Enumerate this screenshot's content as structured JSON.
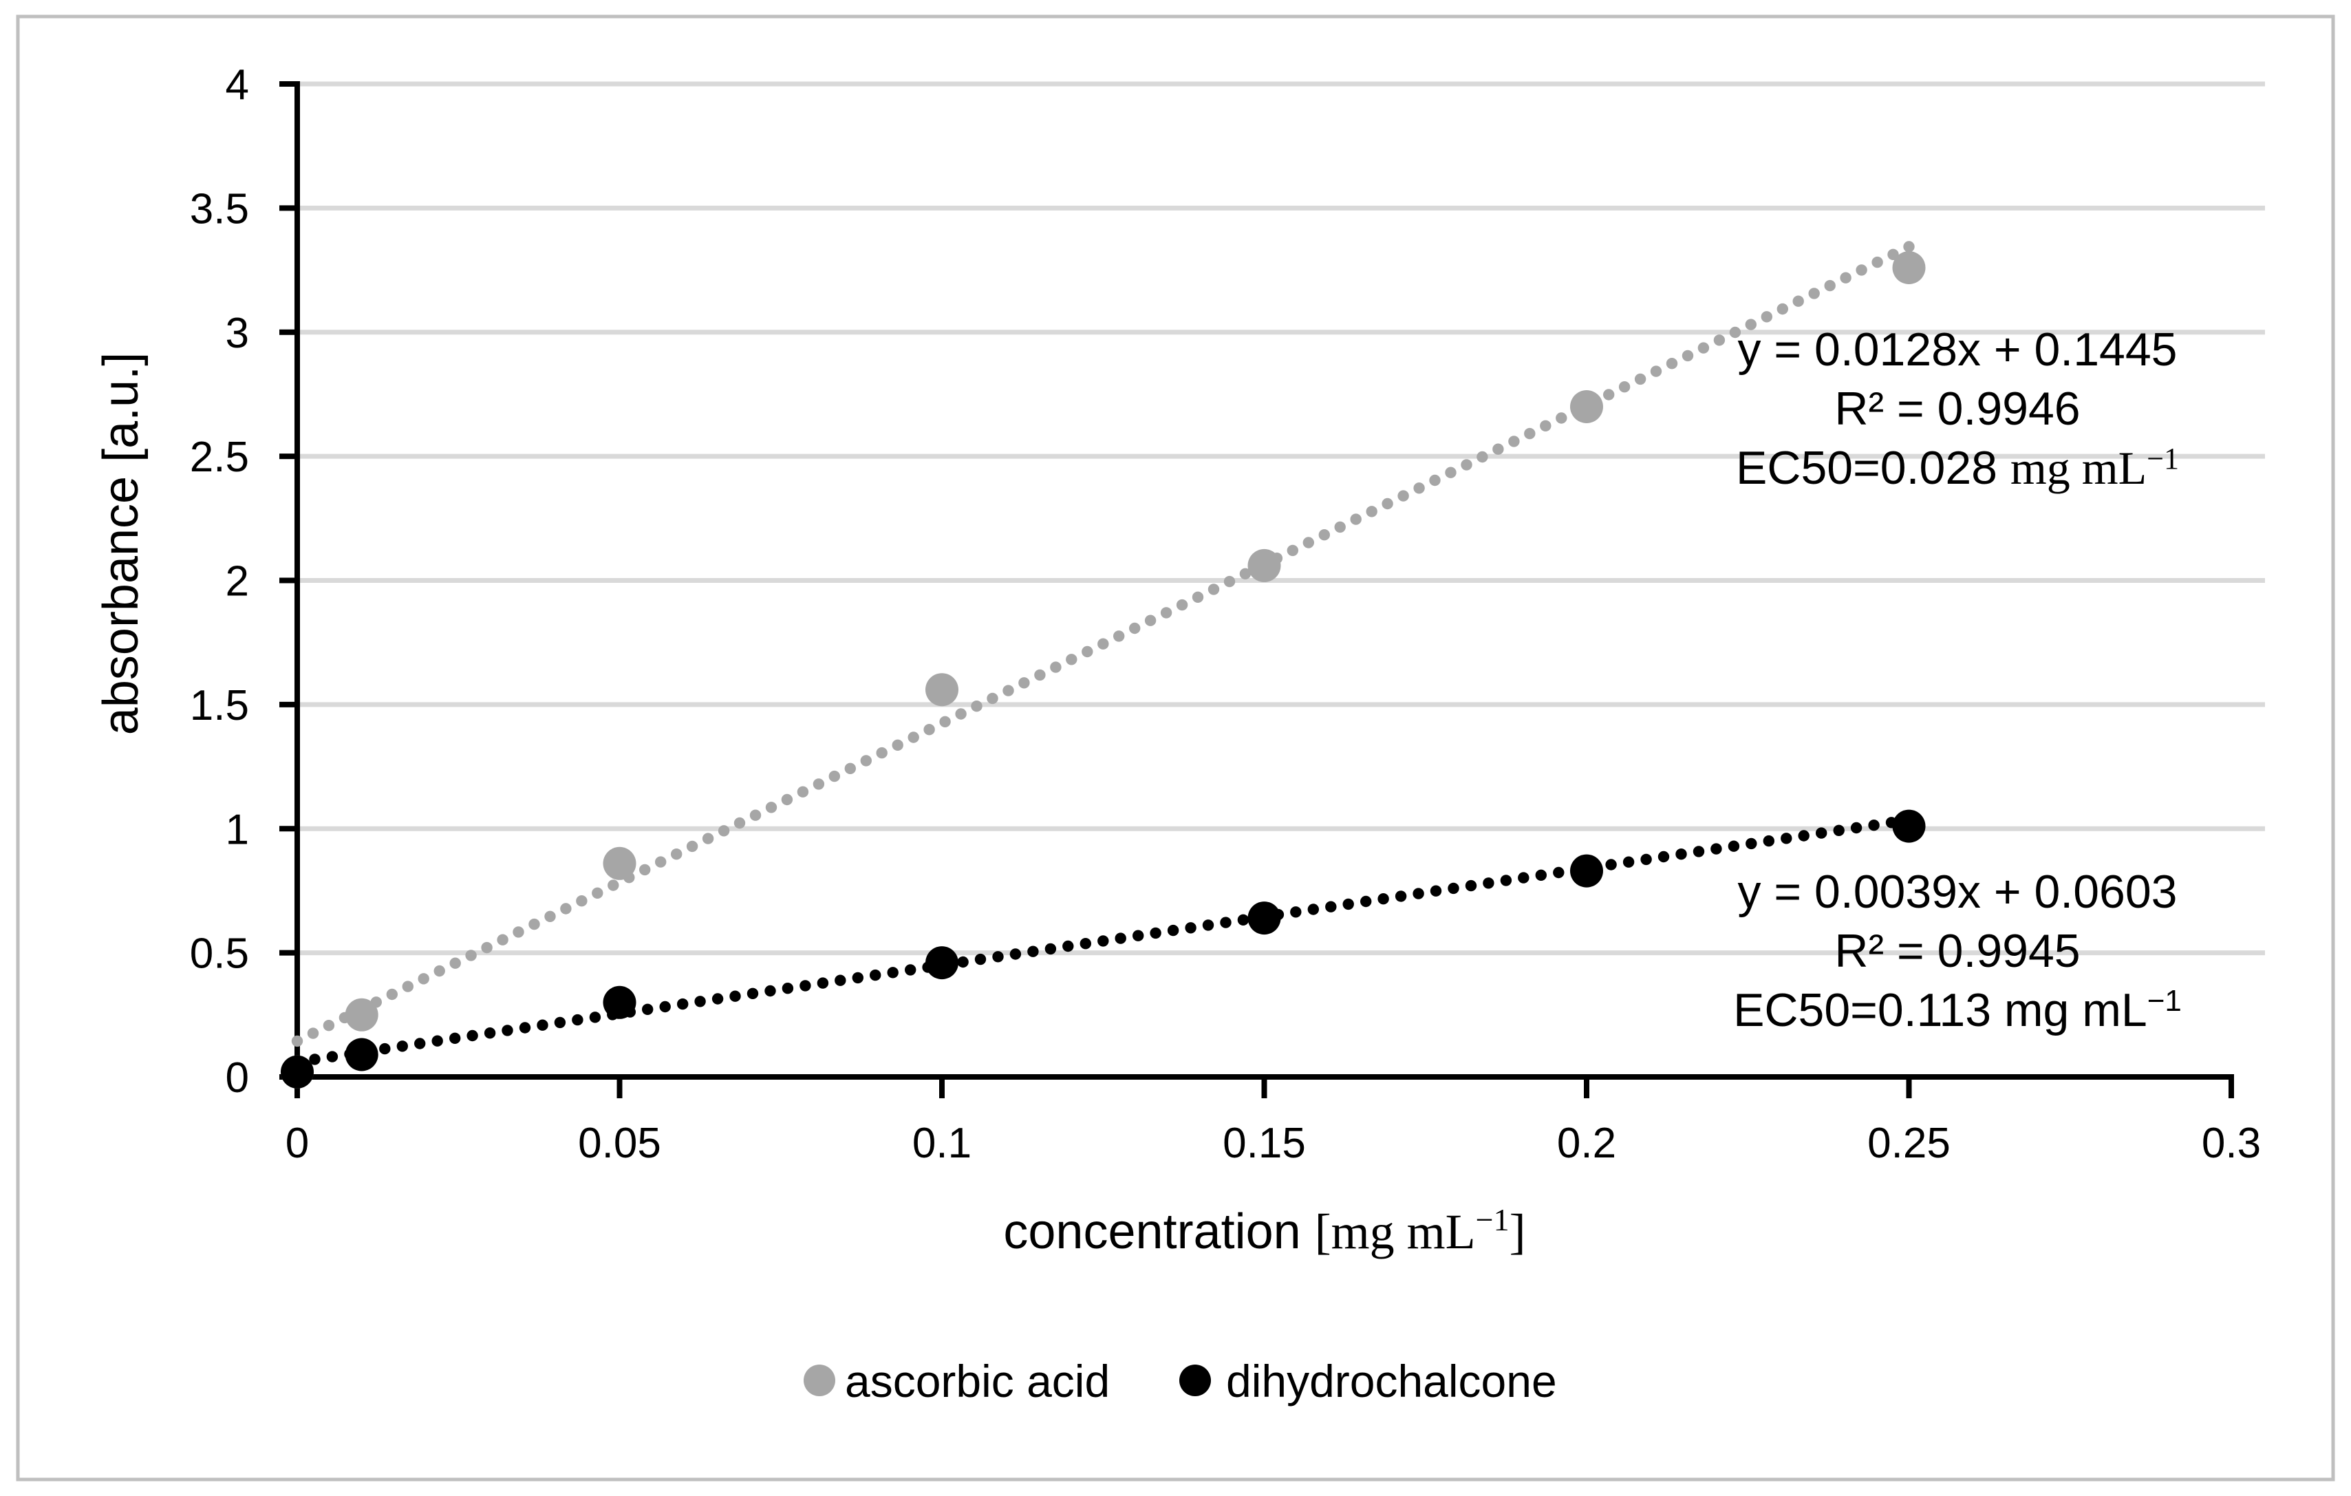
{
  "chart": {
    "background": "#ffffff",
    "border_color": "#bfbfbf"
  },
  "chart_data": {
    "type": "scatter",
    "title": "",
    "xlabel_parts": {
      "main": "concentration ",
      "unit": "[mg mL",
      "sup": "−1",
      "close": "]"
    },
    "ylabel": "absorbance [a.u.]",
    "xlim": [
      0,
      0.3
    ],
    "ylim": [
      0,
      4
    ],
    "x_tick_values": [
      0,
      0.05,
      0.1,
      0.15,
      0.2,
      0.25,
      0.3
    ],
    "x_tick_labels": [
      "0",
      "0.05",
      "0.1",
      "0.15",
      "0.2",
      "0.25",
      "0.3"
    ],
    "y_tick_values": [
      0,
      0.5,
      1,
      1.5,
      2,
      2.5,
      3,
      3.5,
      4
    ],
    "y_tick_labels": [
      "0",
      "0.5",
      "1",
      "1.5",
      "2",
      "2.5",
      "3",
      "3.5",
      "4"
    ],
    "grid": "horizontal-only",
    "legend_position": "bottom-center",
    "colors": {
      "gridline": "#d9d9d9",
      "axis": "#000000",
      "ascorbic": "#a6a6a6",
      "dihydro": "#000000"
    },
    "series": [
      {
        "name": "ascorbic acid",
        "color": "#a6a6a6",
        "x": [
          0,
          0.01,
          0.05,
          0.1,
          0.15,
          0.2,
          0.25
        ],
        "y": [
          0.02,
          0.25,
          0.86,
          1.56,
          2.06,
          2.7,
          3.26
        ],
        "trendline": {
          "style": "dotted",
          "slope_display": 0.0128,
          "intercept": 0.1445,
          "slope_per_mg": 12.8,
          "x_range": [
            0,
            0.25
          ]
        },
        "annotation": {
          "equation": "y = 0.0128x + 0.1445",
          "r_squared": "R² = 0.9946",
          "ec50_prefix": "EC50=0.028 ",
          "ec50_unit": "mg mL",
          "ec50_sup": "−1",
          "ec50_unit_style": "serif"
        }
      },
      {
        "name": "dihydrochalcone",
        "color": "#000000",
        "x": [
          0,
          0.01,
          0.05,
          0.1,
          0.15,
          0.2,
          0.25
        ],
        "y": [
          0.02,
          0.09,
          0.3,
          0.46,
          0.64,
          0.83,
          1.01
        ],
        "trendline": {
          "style": "dotted",
          "slope_display": 0.0039,
          "intercept": 0.0603,
          "slope_per_mg": 3.9,
          "x_range": [
            0,
            0.25
          ]
        },
        "annotation": {
          "equation": "y = 0.0039x + 0.0603",
          "r_squared": "R² = 0.9945",
          "ec50_prefix": "EC50=0.113 ",
          "ec50_unit": "mg mL",
          "ec50_sup": "−1",
          "ec50_unit_style": "sans"
        }
      }
    ]
  }
}
